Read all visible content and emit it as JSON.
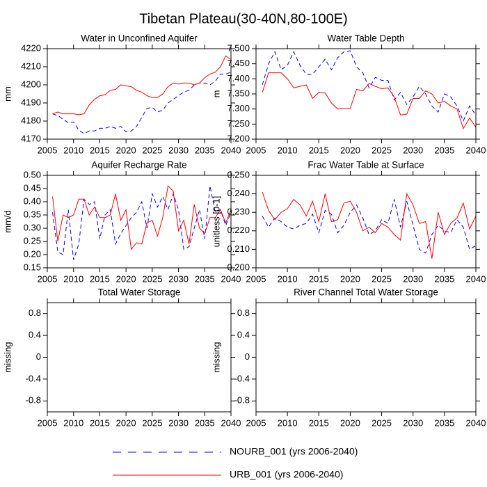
{
  "title": "Tibetan Plateau(30-40N,80-100E)",
  "chart_data": [
    {
      "type": "line",
      "title": "Water in Unconfined Aquifer",
      "ylabel": "mm",
      "x": [
        2006,
        2007,
        2008,
        2009,
        2010,
        2011,
        2012,
        2013,
        2014,
        2015,
        2016,
        2017,
        2018,
        2019,
        2020,
        2021,
        2022,
        2023,
        2024,
        2025,
        2026,
        2027,
        2028,
        2029,
        2030,
        2031,
        2032,
        2033,
        2034,
        2035,
        2036,
        2037,
        2038,
        2039,
        2040
      ],
      "xlim": [
        2005,
        2040
      ],
      "xticks": [
        2005,
        2010,
        2015,
        2020,
        2025,
        2030,
        2035,
        2040
      ],
      "ylim": [
        4170,
        4220
      ],
      "yticks": [
        4170,
        4180,
        4190,
        4200,
        4210,
        4220
      ],
      "series": [
        {
          "name": "NOURB_001 (yrs 2006-2040)",
          "color": "#0000ff",
          "dash": true,
          "values": [
            4184,
            4183,
            4181,
            4179,
            4179.5,
            4175,
            4173,
            4174.5,
            4174.5,
            4176,
            4176,
            4177,
            4176,
            4177,
            4174,
            4174.5,
            4177,
            4182,
            4187,
            4187.5,
            4185,
            4186,
            4190,
            4192,
            4194,
            4196,
            4197,
            4200,
            4201,
            4201,
            4200,
            4202,
            4206,
            4206,
            4207
          ]
        },
        {
          "name": "URB_001 (yrs 2006-2040)",
          "color": "#ff0000",
          "dash": false,
          "values": [
            4184,
            4185,
            4184,
            4184,
            4184,
            4183.5,
            4184,
            4189,
            4192,
            4194,
            4194.5,
            4197,
            4197.5,
            4200,
            4199.5,
            4199,
            4197,
            4196,
            4194,
            4193,
            4193,
            4195,
            4199,
            4201,
            4200.5,
            4201,
            4201,
            4200,
            4201,
            4204,
            4206,
            4207,
            4210,
            4216,
            4214
          ]
        }
      ]
    },
    {
      "type": "line",
      "title": "Water Table Depth",
      "ylabel": "m",
      "x": [
        2006,
        2007,
        2008,
        2009,
        2010,
        2011,
        2012,
        2013,
        2014,
        2015,
        2016,
        2017,
        2018,
        2019,
        2020,
        2021,
        2022,
        2023,
        2024,
        2025,
        2026,
        2027,
        2028,
        2029,
        2030,
        2031,
        2032,
        2033,
        2034,
        2035,
        2036,
        2037,
        2038,
        2039,
        2040
      ],
      "xlim": [
        2005,
        2040
      ],
      "xticks": [
        2005,
        2010,
        2015,
        2020,
        2025,
        2030,
        2035,
        2040
      ],
      "ylim": [
        7.2,
        7.5
      ],
      "yticks": [
        {
          "value": 7.2,
          "label": "7.200"
        },
        {
          "value": 7.25,
          "label": "7.250"
        },
        {
          "value": 7.3,
          "label": "7.300"
        },
        {
          "value": 7.35,
          "label": "7.350"
        },
        {
          "value": 7.4,
          "label": "7.400"
        },
        {
          "value": 7.45,
          "label": "7.450"
        },
        {
          "value": 7.5,
          "label": "7.500"
        }
      ],
      "series": [
        {
          "name": "NOURB_001 (yrs 2006-2040)",
          "color": "#0000ff",
          "dash": true,
          "values": [
            7.38,
            7.45,
            7.49,
            7.43,
            7.445,
            7.49,
            7.445,
            7.415,
            7.415,
            7.44,
            7.465,
            7.43,
            7.47,
            7.49,
            7.493,
            7.44,
            7.42,
            7.37,
            7.405,
            7.395,
            7.395,
            7.33,
            7.355,
            7.315,
            7.34,
            7.375,
            7.35,
            7.31,
            7.29,
            7.35,
            7.34,
            7.31,
            7.26,
            7.31,
            7.28
          ]
        },
        {
          "name": "URB_001 (yrs 2006-2040)",
          "color": "#ff0000",
          "dash": false,
          "values": [
            7.355,
            7.42,
            7.42,
            7.42,
            7.4,
            7.37,
            7.375,
            7.38,
            7.335,
            7.355,
            7.353,
            7.32,
            7.3,
            7.302,
            7.302,
            7.365,
            7.36,
            7.385,
            7.375,
            7.367,
            7.37,
            7.34,
            7.28,
            7.283,
            7.335,
            7.335,
            7.36,
            7.35,
            7.32,
            7.325,
            7.31,
            7.3,
            7.235,
            7.27,
            7.24
          ]
        }
      ]
    },
    {
      "type": "line",
      "title": "Aquifer Recharge Rate",
      "ylabel": "mm/d",
      "x": [
        2006,
        2007,
        2008,
        2009,
        2010,
        2011,
        2012,
        2013,
        2014,
        2015,
        2016,
        2017,
        2018,
        2019,
        2020,
        2021,
        2022,
        2023,
        2024,
        2025,
        2026,
        2027,
        2028,
        2029,
        2030,
        2031,
        2032,
        2033,
        2034,
        2035,
        2036,
        2037,
        2038,
        2039,
        2040
      ],
      "xlim": [
        2005,
        2040
      ],
      "xticks": [
        2005,
        2010,
        2015,
        2020,
        2025,
        2030,
        2035,
        2040
      ],
      "ylim": [
        0.15,
        0.5
      ],
      "yticks": [
        0.15,
        {
          "value": 0.2,
          "label": "0.20"
        },
        0.25,
        {
          "value": 0.3,
          "label": "0.30"
        },
        0.35,
        {
          "value": 0.4,
          "label": "0.40"
        },
        0.45,
        {
          "value": 0.5,
          "label": "0.50"
        }
      ],
      "series": [
        {
          "name": "NOURB_001 (yrs 2006-2040)",
          "color": "#0000ff",
          "dash": true,
          "values": [
            0.36,
            0.21,
            0.2,
            0.37,
            0.18,
            0.24,
            0.41,
            0.39,
            0.4,
            0.26,
            0.35,
            0.37,
            0.24,
            0.28,
            0.31,
            0.34,
            0.36,
            0.4,
            0.3,
            0.43,
            0.38,
            0.42,
            0.37,
            0.43,
            0.37,
            0.22,
            0.23,
            0.3,
            0.37,
            0.26,
            0.46,
            0.36,
            0.37,
            0.31,
            0.36
          ]
        },
        {
          "name": "URB_001 (yrs 2006-2040)",
          "color": "#ff0000",
          "dash": false,
          "values": [
            0.42,
            0.25,
            0.35,
            0.34,
            0.35,
            0.41,
            0.41,
            0.35,
            0.38,
            0.34,
            0.34,
            0.35,
            0.43,
            0.33,
            0.37,
            0.22,
            0.245,
            0.24,
            0.32,
            0.33,
            0.27,
            0.34,
            0.46,
            0.44,
            0.29,
            0.33,
            0.24,
            0.39,
            0.3,
            0.28,
            0.34,
            0.34,
            0.37,
            0.32,
            0.37
          ]
        }
      ]
    },
    {
      "type": "line",
      "title": "Frac Water Table at Surface",
      "ylabel": "unitless [0-1]",
      "x": [
        2006,
        2007,
        2008,
        2009,
        2010,
        2011,
        2012,
        2013,
        2014,
        2015,
        2016,
        2017,
        2018,
        2019,
        2020,
        2021,
        2022,
        2023,
        2024,
        2025,
        2026,
        2027,
        2028,
        2029,
        2030,
        2031,
        2032,
        2033,
        2034,
        2035,
        2036,
        2037,
        2038,
        2039,
        2040
      ],
      "xlim": [
        2005,
        2040
      ],
      "xticks": [
        2005,
        2010,
        2015,
        2020,
        2025,
        2030,
        2035,
        2040
      ],
      "ylim": [
        0.2,
        0.25
      ],
      "yticks": [
        {
          "value": 0.2,
          "label": "0.200"
        },
        {
          "value": 0.21,
          "label": "0.210"
        },
        {
          "value": 0.22,
          "label": "0.220"
        },
        {
          "value": 0.23,
          "label": "0.230"
        },
        {
          "value": 0.24,
          "label": "0.240"
        },
        {
          "value": 0.25,
          "label": "0.250"
        }
      ],
      "series": [
        {
          "name": "NOURB_001 (yrs 2006-2040)",
          "color": "#0000ff",
          "dash": true,
          "values": [
            0.228,
            0.222,
            0.227,
            0.225,
            0.222,
            0.221,
            0.223,
            0.224,
            0.229,
            0.219,
            0.231,
            0.229,
            0.219,
            0.223,
            0.23,
            0.234,
            0.227,
            0.218,
            0.22,
            0.226,
            0.224,
            0.237,
            0.222,
            0.236,
            0.223,
            0.21,
            0.208,
            0.218,
            0.223,
            0.22,
            0.219,
            0.226,
            0.222,
            0.21,
            0.212
          ]
        },
        {
          "name": "URB_001 (yrs 2006-2040)",
          "color": "#ff0000",
          "dash": false,
          "values": [
            0.241,
            0.231,
            0.226,
            0.23,
            0.232,
            0.237,
            0.234,
            0.228,
            0.236,
            0.225,
            0.24,
            0.225,
            0.226,
            0.235,
            0.236,
            0.23,
            0.22,
            0.222,
            0.219,
            0.224,
            0.222,
            0.218,
            0.215,
            0.24,
            0.234,
            0.224,
            0.225,
            0.205,
            0.23,
            0.218,
            0.224,
            0.227,
            0.235,
            0.221,
            0.228
          ]
        }
      ]
    },
    {
      "type": "line",
      "title": "Total Water Storage",
      "ylabel": "missing",
      "xlim": [
        2005,
        2040
      ],
      "xticks": [
        2005,
        2010,
        2015,
        2020,
        2025,
        2030,
        2035,
        2040
      ],
      "ylim": [
        -1,
        1
      ],
      "yticks": [
        -0.8,
        -0.4,
        0,
        0.4,
        0.8
      ]
    },
    {
      "type": "line",
      "title": "River Channel Total Water Storage",
      "ylabel": "missing",
      "xlim": [
        2005,
        2040
      ],
      "xticks": [
        2005,
        2010,
        2015,
        2020,
        2025,
        2030,
        2035,
        2040
      ],
      "ylim": [
        -1,
        1
      ],
      "yticks": [
        -0.8,
        -0.4,
        0,
        0.4,
        0.8
      ]
    }
  ]
}
